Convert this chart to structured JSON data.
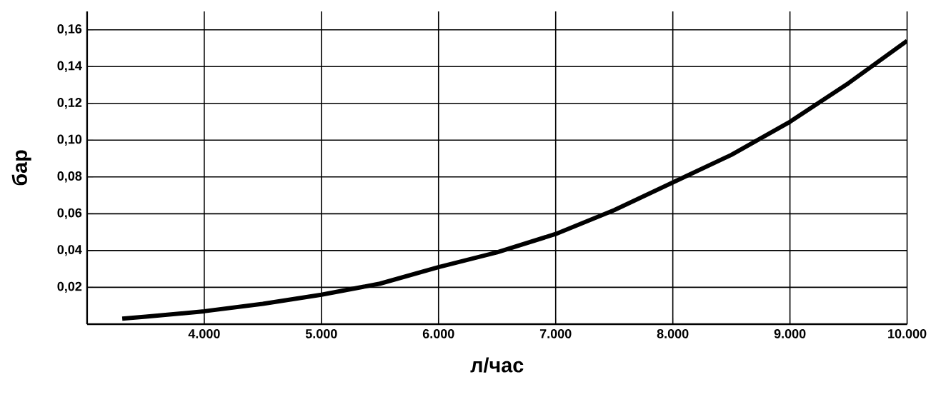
{
  "chart_data": {
    "type": "line",
    "xlabel": "л/час",
    "ylabel": "бар",
    "x": [
      3300,
      3500,
      4000,
      4500,
      5000,
      5500,
      6000,
      6500,
      7000,
      7500,
      8000,
      8500,
      9000,
      9500,
      10000
    ],
    "values": [
      0.003,
      0.004,
      0.007,
      0.011,
      0.016,
      0.022,
      0.031,
      0.039,
      0.049,
      0.062,
      0.077,
      0.092,
      0.11,
      0.131,
      0.154
    ],
    "color": "#000000",
    "xlim": [
      3000,
      10000
    ],
    "ylim": [
      0,
      0.17
    ],
    "xticks": [
      {
        "value": 3000,
        "label": null
      },
      {
        "value": 4000,
        "label": "4.000"
      },
      {
        "value": 5000,
        "label": "5.000"
      },
      {
        "value": 6000,
        "label": "6.000"
      },
      {
        "value": 7000,
        "label": "7.000"
      },
      {
        "value": 8000,
        "label": "8.000"
      },
      {
        "value": 9000,
        "label": "9.000"
      },
      {
        "value": 10000,
        "label": "10.000"
      }
    ],
    "yticks": [
      {
        "value": 0,
        "label": null
      },
      {
        "value": 0.02,
        "label": "0,02"
      },
      {
        "value": 0.04,
        "label": "0,04"
      },
      {
        "value": 0.06,
        "label": "0,06"
      },
      {
        "value": 0.08,
        "label": "0,08"
      },
      {
        "value": 0.1,
        "label": "0,10"
      },
      {
        "value": 0.12,
        "label": "0,12"
      },
      {
        "value": 0.14,
        "label": "0,14"
      },
      {
        "value": 0.16,
        "label": "0,16"
      }
    ],
    "grid": true,
    "marker": "none",
    "line_style": "solid"
  }
}
